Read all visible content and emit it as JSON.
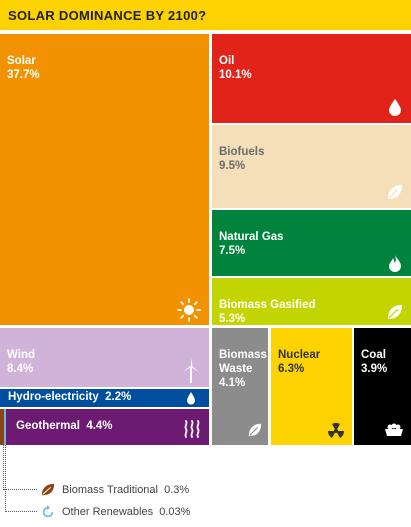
{
  "title": "SOLAR DOMINANCE BY 2100?",
  "chart_data": {
    "type": "treemap",
    "title": "SOLAR DOMINANCE BY 2100?",
    "unit": "%",
    "tiles": [
      {
        "name": "Solar",
        "value": "37.7%",
        "color": "#f39200",
        "text_color": "#ffffff",
        "icon": "sun-icon"
      },
      {
        "name": "Oil",
        "value": "10.1%",
        "color": "#e2231a",
        "text_color": "#ffffff",
        "icon": "oil-drop-icon"
      },
      {
        "name": "Biofuels",
        "value": "9.5%",
        "color": "#f4dfb8",
        "text_color": "#6b6b6b",
        "icon": "leaf-icon"
      },
      {
        "name": "Natural Gas",
        "value": "7.5%",
        "color": "#00843d",
        "text_color": "#ffffff",
        "icon": "flame-icon"
      },
      {
        "name": "Biomass Gasified",
        "value": "5.3%",
        "color": "#c3d500",
        "text_color": "#ffffff",
        "icon": "leaf-icon"
      },
      {
        "name": "Wind",
        "value": "8.4%",
        "color": "#d1b3d9",
        "text_color": "#ffffff",
        "icon": "wind-turbine-icon"
      },
      {
        "name": "Biomass Waste",
        "value": "4.1%",
        "color": "#8c8c8c",
        "text_color": "#ffffff",
        "icon": "leaf-icon"
      },
      {
        "name": "Nuclear",
        "value": "6.3%",
        "color": "#fcd200",
        "text_color": "#333333",
        "icon": "radiation-icon"
      },
      {
        "name": "Coal",
        "value": "3.9%",
        "color": "#000000",
        "text_color": "#ffffff",
        "icon": "coal-cart-icon"
      },
      {
        "name": "Hydro-electricity",
        "value": "2.2%",
        "color": "#004f9f",
        "text_color": "#ffffff",
        "icon": "water-drop-icon"
      },
      {
        "name": "Geothermal",
        "value": "4.4%",
        "color": "#6d1a73",
        "text_color": "#ffffff",
        "icon": "heat-waves-icon"
      },
      {
        "name": "Biomass Traditional",
        "value": "0.3%",
        "color": "#8b4513",
        "icon": "brown-leaf-icon"
      },
      {
        "name": "Other Renewables",
        "value": "0.03%",
        "color": "#6cb4e4",
        "icon": "cycle-arrow-icon"
      }
    ]
  },
  "tiles": {
    "solar": {
      "name": "Solar",
      "value": "37.7%"
    },
    "oil": {
      "name": "Oil",
      "value": "10.1%"
    },
    "biofuels": {
      "name": "Biofuels",
      "value": "9.5%"
    },
    "natural_gas": {
      "name": "Natural Gas",
      "value": "7.5%"
    },
    "biomass_gasified": {
      "name": "Biomass Gasified",
      "value": "5.3%"
    },
    "wind": {
      "name": "Wind",
      "value": "8.4%"
    },
    "biomass_waste": {
      "name": "Biomass\nWaste",
      "value": "4.1%"
    },
    "nuclear": {
      "name": "Nuclear",
      "value": "6.3%"
    },
    "coal": {
      "name": "Coal",
      "value": "3.9%"
    },
    "hydro": {
      "name": "Hydro-electricity",
      "value": "2.2%"
    },
    "geothermal": {
      "name": "Geothermal",
      "value": "4.4%"
    }
  },
  "legend": {
    "biomass_traditional": {
      "name": "Biomass Traditional",
      "value": "0.3%"
    },
    "other_renewables": {
      "name": "Other Renewables",
      "value": "0.03%"
    }
  }
}
